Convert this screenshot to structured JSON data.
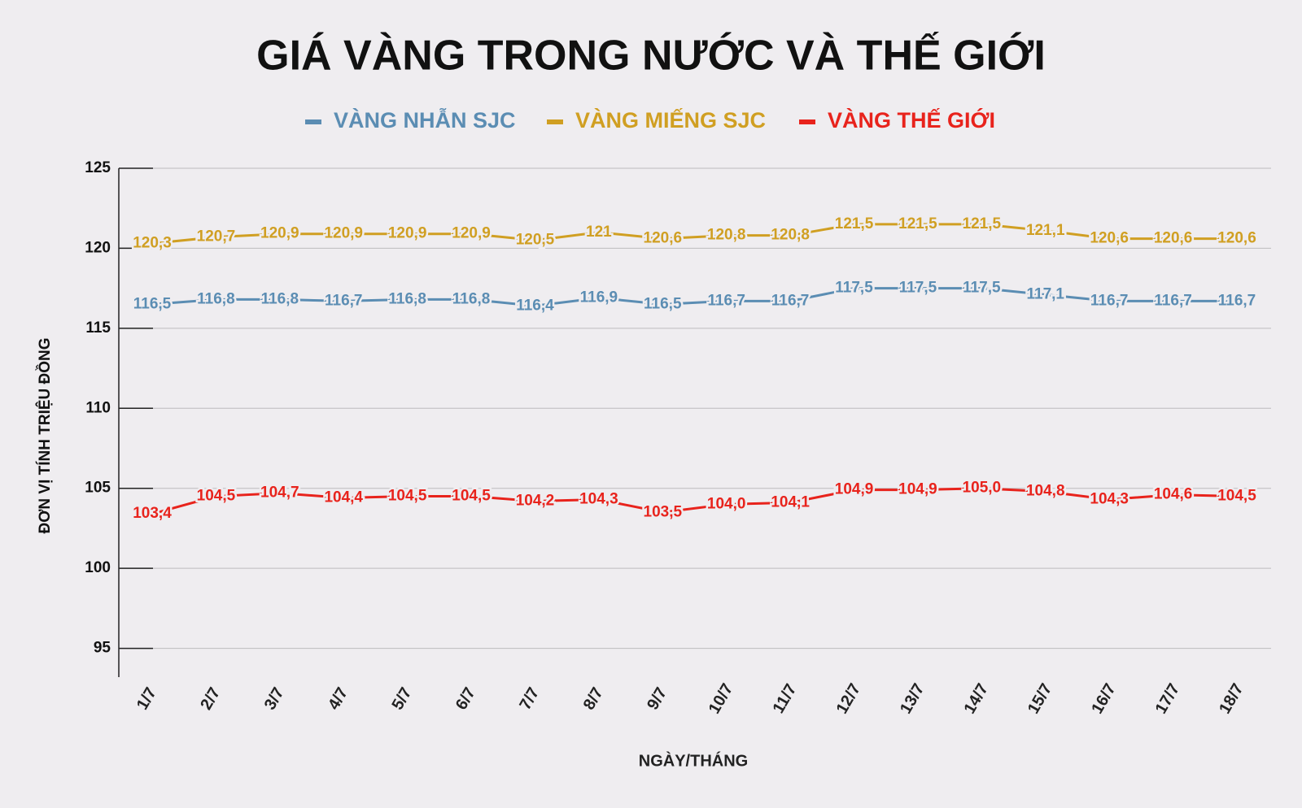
{
  "chart_data": {
    "type": "line",
    "title": "GIÁ VÀNG TRONG NƯỚC VÀ THẾ GIỚI",
    "y_label": "ĐƠN VỊ TÍNH TRIỆU ĐỒNG",
    "x_label": "NGÀY/THÁNG",
    "categories": [
      "1/7",
      "2/7",
      "3/7",
      "4/7",
      "5/7",
      "6/7",
      "7/7",
      "8/7",
      "9/7",
      "10/7",
      "11/7",
      "12/7",
      "13/7",
      "14/7",
      "15/7",
      "16/7",
      "17/7",
      "18/7"
    ],
    "series": [
      {
        "name": "VÀNG NHẪN SJC",
        "color": "#5b8db3",
        "values": [
          116.5,
          116.8,
          116.8,
          116.7,
          116.8,
          116.8,
          116.4,
          116.9,
          116.5,
          116.7,
          116.7,
          117.5,
          117.5,
          117.5,
          117.1,
          116.7,
          116.7,
          116.7
        ],
        "value_labels": [
          "116,5",
          "116,8",
          "116,8",
          "116,7",
          "116,8",
          "116,8",
          "116,4",
          "116,9",
          "116,5",
          "116,7",
          "116,7",
          "117,5",
          "117,5",
          "117,5",
          "117,1",
          "116,7",
          "116,7",
          "116,7"
        ]
      },
      {
        "name": "VÀNG MIẾNG SJC",
        "color": "#d09f22",
        "values": [
          120.3,
          120.7,
          120.9,
          120.9,
          120.9,
          120.9,
          120.5,
          121,
          120.6,
          120.8,
          120.8,
          121.5,
          121.5,
          121.5,
          121.1,
          120.6,
          120.6,
          120.6
        ],
        "value_labels": [
          "120,3",
          "120,7",
          "120,9",
          "120,9",
          "120,9",
          "120,9",
          "120,5",
          "121",
          "120,6",
          "120,8",
          "120,8",
          "121,5",
          "121,5",
          "121,5",
          "121,1",
          "120,6",
          "120,6",
          "120,6"
        ]
      },
      {
        "name": "VÀNG THẾ GIỚI",
        "color": "#e8231c",
        "values": [
          103.4,
          104.5,
          104.7,
          104.4,
          104.5,
          104.5,
          104.2,
          104.3,
          103.5,
          104.0,
          104.1,
          104.9,
          104.9,
          105.0,
          104.8,
          104.3,
          104.6,
          104.5
        ],
        "value_labels": [
          "103,4",
          "104,5",
          "104,7",
          "104,4",
          "104,5",
          "104,5",
          "104,2",
          "104,3",
          "103,5",
          "104,0",
          "104,1",
          "104,9",
          "104,9",
          "105,0",
          "104,8",
          "104,3",
          "104,6",
          "104,5"
        ]
      }
    ],
    "ylim": [
      93.2,
      125
    ],
    "yticks": [
      95,
      100,
      105,
      110,
      115,
      120,
      125
    ],
    "grid": true
  }
}
